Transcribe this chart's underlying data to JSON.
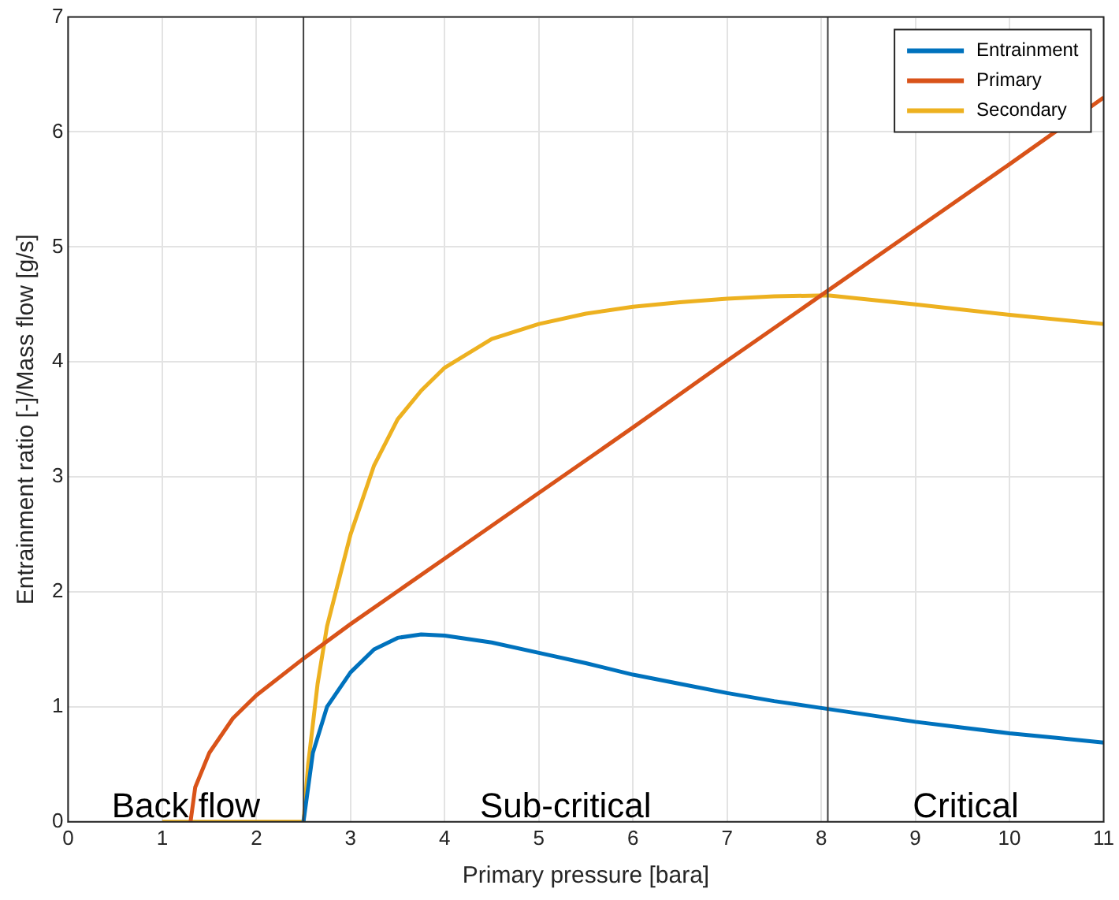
{
  "chart_data": {
    "type": "line",
    "xlabel": "Primary pressure [bara]",
    "ylabel": "Entrainment ratio [-]/Mass flow [g/s]",
    "xlim": [
      0,
      11
    ],
    "ylim": [
      0,
      7
    ],
    "xticks": [
      0,
      1,
      2,
      3,
      4,
      5,
      6,
      7,
      8,
      9,
      10,
      11
    ],
    "yticks": [
      0,
      1,
      2,
      3,
      4,
      5,
      6,
      7
    ],
    "grid": true,
    "legend": "top right",
    "marker": "none",
    "line_style": "solid",
    "series": [
      {
        "name": "Entrainment",
        "color": "#0072bd",
        "x": [
          2.5,
          2.6,
          2.75,
          3,
          3.25,
          3.5,
          3.75,
          4,
          4.5,
          5,
          5.5,
          6,
          6.5,
          7,
          7.5,
          8,
          8.5,
          9,
          9.5,
          10,
          10.5,
          11
        ],
        "values": [
          0,
          0.6,
          1.0,
          1.3,
          1.5,
          1.6,
          1.63,
          1.62,
          1.56,
          1.47,
          1.38,
          1.28,
          1.2,
          1.12,
          1.05,
          0.99,
          0.93,
          0.87,
          0.82,
          0.77,
          0.73,
          0.69
        ]
      },
      {
        "name": "Primary",
        "color": "#d95319",
        "x": [
          1.3,
          1.35,
          1.5,
          1.75,
          2,
          2.5,
          3,
          4,
          5,
          6,
          7,
          8,
          9,
          10,
          11
        ],
        "values": [
          0,
          0.3,
          0.6,
          0.9,
          1.1,
          1.42,
          1.72,
          2.29,
          2.86,
          3.43,
          4.01,
          4.58,
          5.15,
          5.72,
          6.3
        ]
      },
      {
        "name": "Secondary",
        "color": "#edb120",
        "x": [
          1,
          2.5,
          2.55,
          2.65,
          2.75,
          3,
          3.25,
          3.5,
          3.75,
          4,
          4.5,
          5,
          5.5,
          6,
          6.5,
          7,
          7.5,
          8.07,
          9,
          10,
          11
        ],
        "values": [
          0,
          0,
          0.5,
          1.2,
          1.7,
          2.5,
          3.1,
          3.5,
          3.75,
          3.95,
          4.2,
          4.33,
          4.42,
          4.48,
          4.52,
          4.55,
          4.57,
          4.58,
          4.5,
          4.41,
          4.33
        ]
      }
    ],
    "ref_lines": [
      {
        "axis": "x",
        "value": 2.5,
        "color": "#404040"
      },
      {
        "axis": "x",
        "value": 8.07,
        "color": "#404040"
      }
    ],
    "annotations": [
      "Back flow",
      "Sub-critical",
      "Critical"
    ]
  }
}
